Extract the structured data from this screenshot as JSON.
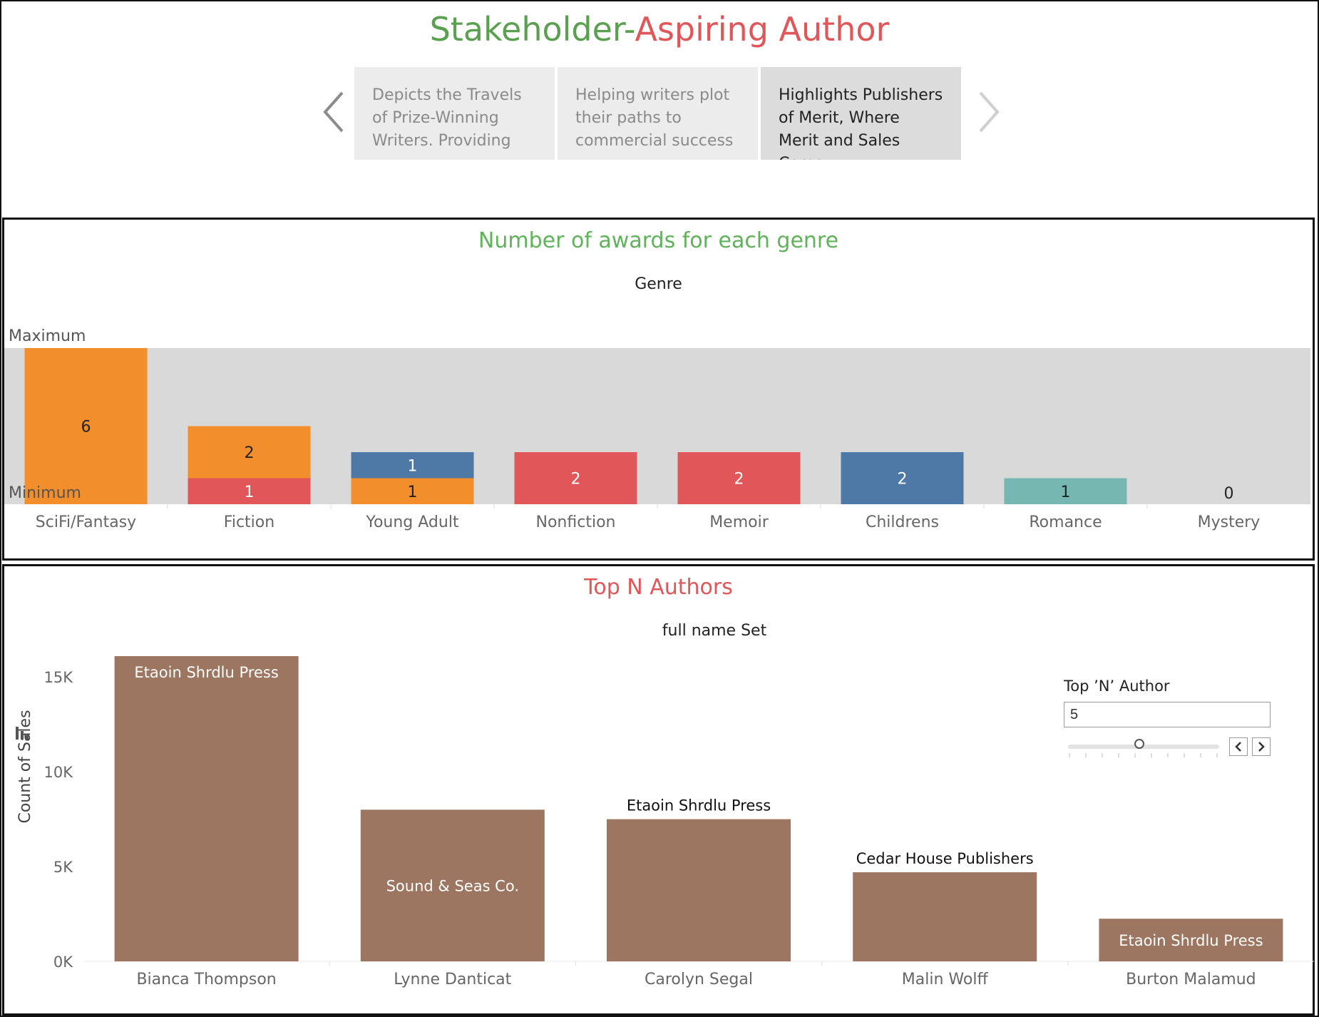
{
  "story": {
    "title_part1": "Stakeholder-",
    "title_part2": "Aspiring Author",
    "title_color1": "#5aa14f",
    "title_color2": "#e15759",
    "points": [
      {
        "text": "Depicts the Travels of Prize-Winning Writers. Providing"
      },
      {
        "text": "Helping writers plot their paths to commercial success"
      },
      {
        "text": "Highlights Publishers of Merit, Where Merit and Sales Come",
        "active": true
      }
    ]
  },
  "awards": {
    "title": "Number of awards for each genre",
    "title_color": "#5fb35a",
    "header": "Genre",
    "band_max_label": "Maximum",
    "band_min_label": "Minimum"
  },
  "authors": {
    "title": "Top N Authors",
    "title_color": "#e15759",
    "header": "full name Set",
    "param": {
      "label": "Top ’N’ Author",
      "value": "5"
    }
  },
  "chart_data": [
    {
      "type": "bar",
      "stacked": true,
      "title": "Number of awards for each genre",
      "header": "Genre",
      "categories": [
        "SciFi/Fantasy",
        "Fiction",
        "Young Adult",
        "Nonfiction",
        "Memoir",
        "Childrens",
        "Romance",
        "Mystery"
      ],
      "stacks": [
        [
          {
            "value": 6,
            "color": "#f28e2b"
          }
        ],
        [
          {
            "value": 1,
            "color": "#e15759"
          },
          {
            "value": 2,
            "color": "#f28e2b"
          }
        ],
        [
          {
            "value": 1,
            "color": "#f28e2b"
          },
          {
            "value": 1,
            "color": "#4e79a7"
          }
        ],
        [
          {
            "value": 2,
            "color": "#e15759"
          }
        ],
        [
          {
            "value": 2,
            "color": "#e15759"
          }
        ],
        [
          {
            "value": 2,
            "color": "#4e79a7"
          }
        ],
        [
          {
            "value": 1,
            "color": "#76b7b2"
          }
        ],
        []
      ],
      "totals": [
        6,
        3,
        2,
        2,
        2,
        2,
        1,
        0
      ],
      "ylim": [
        0,
        6
      ],
      "reference_band": {
        "min_label": "Minimum",
        "max_label": "Maximum",
        "color": "#d9d9d9"
      },
      "value_label_colors": {
        "#f28e2b": "#222222",
        "#e15759": "#ffffff",
        "#4e79a7": "#ffffff",
        "#76b7b2": "#222222"
      }
    },
    {
      "type": "bar",
      "title": "Top N Authors",
      "header": "full name Set",
      "categories": [
        "Bianca Thompson",
        "Lynne Danticat",
        "Carolyn Segal",
        "Malin Wolff",
        "Burton Malamud"
      ],
      "values": [
        16100,
        8000,
        7500,
        4700,
        2250
      ],
      "bar_labels": [
        "Etaoin Shrdlu Press",
        "Sound & Seas Co.",
        "Etaoin Shrdlu Press",
        "Cedar House Publishers",
        "Etaoin Shrdlu Press"
      ],
      "bar_label_position": [
        "inside-top",
        "inside-middle",
        "above",
        "above",
        "inside-middle"
      ],
      "ylabel": "Count of Sales",
      "yticks": [
        0,
        5000,
        10000,
        15000
      ],
      "ytick_labels": [
        "0K",
        "5K",
        "10K",
        "15K"
      ],
      "ylim": [
        0,
        16100
      ],
      "color": "#9c7660",
      "grid": false
    }
  ]
}
